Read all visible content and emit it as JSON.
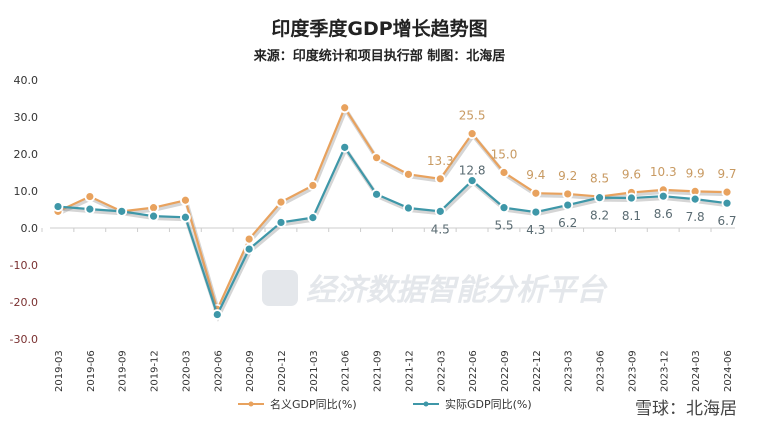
{
  "chart_data": {
    "type": "line",
    "title": "印度季度GDP增长趋势图",
    "subtitle": "来源：印度统计和项目执行部  制图：北海居",
    "xlabel": "",
    "ylabel": "",
    "ylim": [
      -30,
      40
    ],
    "yticks": [
      "40.0",
      "30.0",
      "20.0",
      "10.0",
      "0.0",
      "-10.0",
      "-20.0",
      "-30.0"
    ],
    "ytick_values": [
      40,
      30,
      20,
      10,
      0,
      -10,
      -20,
      -30
    ],
    "categories": [
      "2019-03",
      "2019-06",
      "2019-09",
      "2019-12",
      "2020-03",
      "2020-06",
      "2020-09",
      "2020-12",
      "2021-03",
      "2021-06",
      "2021-09",
      "2021-12",
      "2022-03",
      "2022-06",
      "2022-09",
      "2022-12",
      "2023-03",
      "2023-06",
      "2023-09",
      "2023-12",
      "2024-03",
      "2024-06"
    ],
    "series": [
      {
        "name": "名义GDP同比(%)",
        "color": "#E8A25E",
        "values": [
          4.5,
          8.5,
          4.5,
          5.5,
          7.5,
          -22.0,
          -3.0,
          7.0,
          11.5,
          32.5,
          19.0,
          14.5,
          13.3,
          25.5,
          15.0,
          9.4,
          9.2,
          8.5,
          9.6,
          10.3,
          9.9,
          9.7
        ],
        "labels": [
          "",
          "",
          "",
          "",
          "",
          "",
          "",
          "",
          "",
          "",
          "",
          "",
          "13.3",
          "25.5",
          "15.0",
          "9.4",
          "9.2",
          "8.5",
          "9.6",
          "10.3",
          "9.9",
          "9.7"
        ]
      },
      {
        "name": "实际GDP同比(%)",
        "color": "#3E97A8",
        "values": [
          5.8,
          5.1,
          4.5,
          3.2,
          2.9,
          -23.4,
          -5.7,
          1.5,
          2.8,
          21.8,
          9.1,
          5.4,
          4.5,
          12.8,
          5.5,
          4.3,
          6.2,
          8.2,
          8.1,
          8.6,
          7.8,
          6.7
        ],
        "labels": [
          "",
          "",
          "",
          "",
          "",
          "",
          "",
          "",
          "",
          "",
          "",
          "",
          "4.5",
          "12.8",
          "5.5",
          "4.3",
          "6.2",
          "8.2",
          "8.1",
          "8.6",
          "7.8",
          "6.7"
        ]
      }
    ],
    "legend": "bottom",
    "grid": false,
    "watermark": "经济数据智能分析平台"
  },
  "footer": "雪球：北海居"
}
